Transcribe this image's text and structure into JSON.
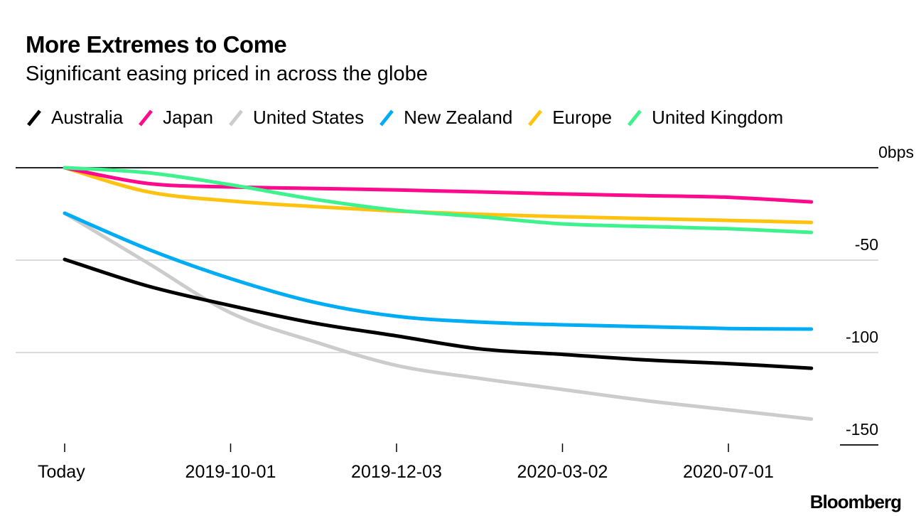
{
  "chart_data": {
    "type": "line",
    "title": "More Extremes to Come",
    "subtitle": "Significant easing priced in across the globe",
    "xlabel": "",
    "ylabel": "",
    "y_unit_label": "0bps",
    "ylim": [
      -150,
      0
    ],
    "yticks": [
      0,
      -50,
      -100,
      -150
    ],
    "ytick_labels": [
      "0bps",
      "-50",
      "-100",
      "-150"
    ],
    "x_tick_labels": [
      "Today",
      "2019-10-01",
      "2019-12-03",
      "2020-03-02",
      "2020-07-01"
    ],
    "x_tick_positions": [
      0,
      1,
      2,
      3,
      4
    ],
    "x": [
      0,
      0.5,
      1,
      1.5,
      2,
      2.5,
      3,
      3.5,
      4,
      4.5
    ],
    "grid": true,
    "legend_position": "top-left",
    "series": [
      {
        "name": "Australia",
        "color": "#000000",
        "values": [
          -49.6,
          -64,
          -74.6,
          -84,
          -91,
          -98,
          -101,
          -104,
          -106,
          -108.5
        ]
      },
      {
        "name": "Japan",
        "color": "#ff0a8c",
        "values": [
          0,
          -8.5,
          -10.4,
          -11.2,
          -12,
          -13.1,
          -14.2,
          -15.1,
          -16,
          -18.5
        ]
      },
      {
        "name": "United States",
        "color": "#cccccc",
        "values": [
          -24.6,
          -51.5,
          -78.5,
          -94,
          -107,
          -114,
          -120,
          -126,
          -131,
          -136
        ]
      },
      {
        "name": "New Zealand",
        "color": "#00adf5",
        "values": [
          -24.6,
          -44,
          -60,
          -72.7,
          -80.4,
          -83.5,
          -85,
          -86,
          -87,
          -87.3
        ]
      },
      {
        "name": "Europe",
        "color": "#ffc20e",
        "values": [
          0,
          -13,
          -18,
          -21,
          -23.5,
          -25.2,
          -26.5,
          -27.5,
          -28.5,
          -29.6
        ]
      },
      {
        "name": "United Kingdom",
        "color": "#3ef28e",
        "values": [
          0,
          -2.7,
          -9.2,
          -17,
          -23,
          -26.5,
          -30.4,
          -31.8,
          -33,
          -35
        ]
      }
    ]
  },
  "branding": "Bloomberg"
}
